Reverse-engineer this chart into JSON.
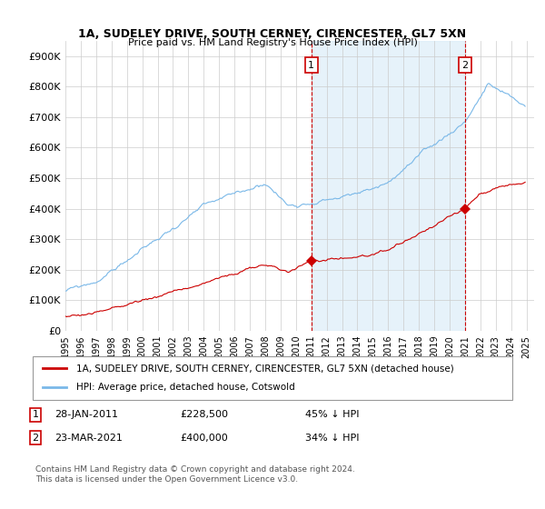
{
  "title": "1A, SUDELEY DRIVE, SOUTH CERNEY, CIRENCESTER, GL7 5XN",
  "subtitle": "Price paid vs. HM Land Registry's House Price Index (HPI)",
  "ylim": [
    0,
    950000
  ],
  "yticks": [
    0,
    100000,
    200000,
    300000,
    400000,
    500000,
    600000,
    700000,
    800000,
    900000
  ],
  "ytick_labels": [
    "£0",
    "£100K",
    "£200K",
    "£300K",
    "£400K",
    "£500K",
    "£600K",
    "£700K",
    "£800K",
    "£900K"
  ],
  "hpi_color": "#7ab8e8",
  "hpi_fill_color": "#d6eaf8",
  "price_color": "#cc0000",
  "marker1_price": 228500,
  "marker1_label": "28-JAN-2011",
  "marker1_text": "£228,500",
  "marker1_note": "45% ↓ HPI",
  "marker2_price": 400000,
  "marker2_label": "23-MAR-2021",
  "marker2_text": "£400,000",
  "marker2_note": "34% ↓ HPI",
  "legend_line1": "1A, SUDELEY DRIVE, SOUTH CERNEY, CIRENCESTER, GL7 5XN (detached house)",
  "legend_line2": "HPI: Average price, detached house, Cotswold",
  "footer": "Contains HM Land Registry data © Crown copyright and database right 2024.\nThis data is licensed under the Open Government Licence v3.0."
}
